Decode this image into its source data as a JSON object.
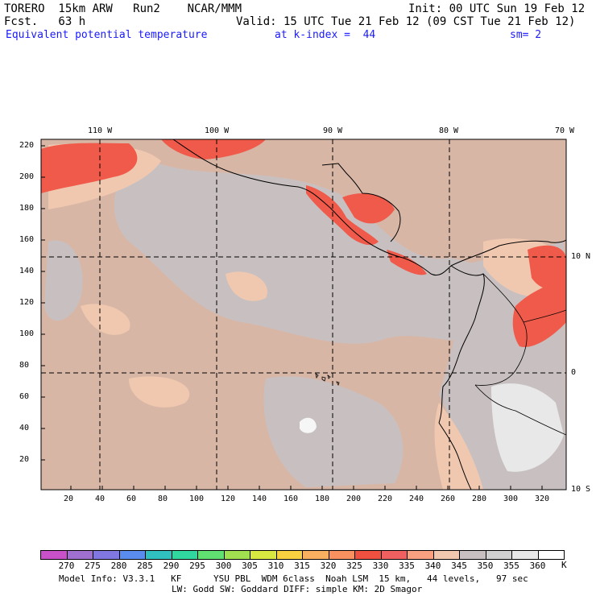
{
  "header": {
    "model": "TORERO  15km ARW   Run2    NCAR/MMM",
    "init": "Init: 00 UTC Sun 19 Feb 12",
    "fcst": "Fcst.   63 h",
    "valid": "Valid: 15 UTC Tue 21 Feb 12 (09 CST Tue 21 Feb 12)",
    "field": "Equivalent potential temperature",
    "level": "at k-index =  44",
    "smooth": "sm= 2"
  },
  "map": {
    "lon_labels": [
      "110 W",
      "100 W",
      "90 W",
      "80 W",
      "70 W"
    ],
    "lat_labels": [
      "10 N",
      "0",
      "10 S"
    ],
    "y_ticks": [
      "220",
      "200",
      "180",
      "160",
      "140",
      "120",
      "100",
      "80",
      "60",
      "40",
      "20"
    ],
    "x_ticks": [
      "20",
      "40",
      "60",
      "80",
      "100",
      "120",
      "140",
      "160",
      "180",
      "200",
      "220",
      "240",
      "260",
      "280",
      "300",
      "320"
    ]
  },
  "colorbar": {
    "labels": [
      "270",
      "275",
      "280",
      "285",
      "290",
      "295",
      "300",
      "305",
      "310",
      "315",
      "320",
      "325",
      "330",
      "335",
      "340",
      "345",
      "350",
      "355",
      "360"
    ],
    "unit": "K",
    "colors": [
      "#c850c8",
      "#a070d0",
      "#8078e0",
      "#5a8cf0",
      "#30c0c0",
      "#30d8a0",
      "#60e070",
      "#a0e050",
      "#d8e840",
      "#f8d040",
      "#f8b060",
      "#f89060",
      "#f05040",
      "#f06060",
      "#f8a080",
      "#f0c8b0",
      "#c8c0c0",
      "#d0d0d0",
      "#e8e8e8",
      "#ffffff"
    ]
  },
  "footer": {
    "line1": "Model Info: V3.3.1   KF      YSU PBL  WDM 6class  Noah LSM  15 km,   44 levels,   97 sec",
    "line2": "LW: Godd SW: Goddard DIFF: simple KM: 2D Smagor"
  }
}
